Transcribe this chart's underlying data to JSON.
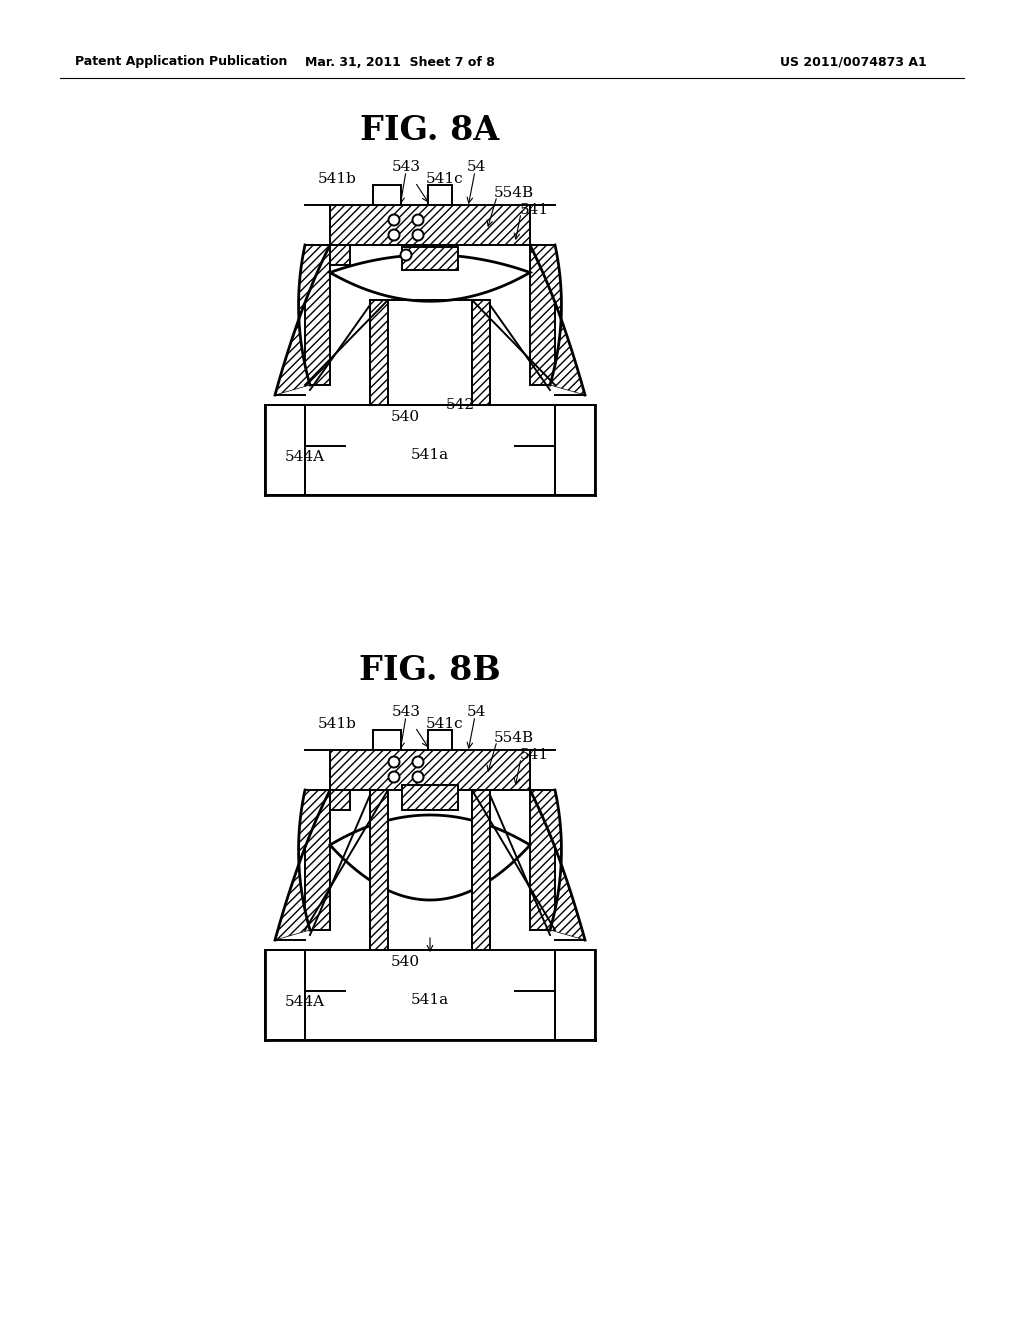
{
  "bg_color": "#ffffff",
  "line_color": "#000000",
  "header_left": "Patent Application Publication",
  "header_center": "Mar. 31, 2011  Sheet 7 of 8",
  "header_right": "US 2011/0074873 A1",
  "fig_a_title": "FIG. 8A",
  "fig_b_title": "FIG. 8B",
  "lw": 1.4,
  "lw2": 2.0,
  "label_fs": 11,
  "header_fs": 9,
  "title_fs": 24
}
